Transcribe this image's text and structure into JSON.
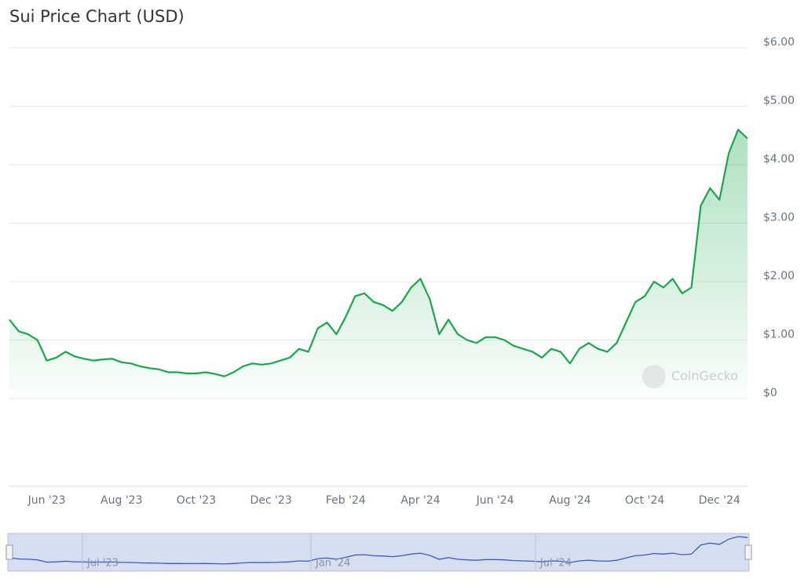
{
  "chart_data": {
    "type": "line",
    "title": "Sui Price Chart (USD)",
    "watermark": "CoinGecko",
    "color": "#18a84a",
    "grid": true,
    "categories": [
      null,
      null,
      null,
      null,
      "Jun '23",
      null,
      null,
      null,
      null,
      null,
      null,
      null,
      "Aug '23",
      null,
      null,
      null,
      null,
      null,
      null,
      null,
      "Oct '23",
      null,
      null,
      null,
      null,
      null,
      null,
      null,
      "Dec '23",
      null,
      null,
      null,
      null,
      null,
      null,
      null,
      "Feb '24",
      null,
      null,
      null,
      null,
      null,
      null,
      null,
      "Apr '24",
      null,
      null,
      null,
      null,
      null,
      null,
      null,
      "Jun '24",
      null,
      null,
      null,
      null,
      null,
      null,
      null,
      "Aug '24",
      null,
      null,
      null,
      null,
      null,
      null,
      null,
      "Oct '24",
      null,
      null,
      null,
      null,
      null,
      null,
      null,
      "Dec '24",
      null,
      null,
      null
    ],
    "values": [
      1.35,
      1.15,
      1.1,
      1.0,
      0.65,
      0.7,
      0.8,
      0.72,
      0.68,
      0.65,
      0.67,
      0.68,
      0.62,
      0.6,
      0.55,
      0.52,
      0.5,
      0.45,
      0.45,
      0.43,
      0.43,
      0.45,
      0.42,
      0.38,
      0.45,
      0.55,
      0.6,
      0.58,
      0.6,
      0.65,
      0.7,
      0.85,
      0.8,
      1.2,
      1.3,
      1.1,
      1.4,
      1.75,
      1.8,
      1.65,
      1.6,
      1.5,
      1.65,
      1.9,
      2.05,
      1.7,
      1.1,
      1.35,
      1.1,
      1.0,
      0.95,
      1.05,
      1.05,
      1.0,
      0.9,
      0.85,
      0.8,
      0.7,
      0.85,
      0.8,
      0.6,
      0.85,
      0.95,
      0.85,
      0.8,
      0.95,
      1.3,
      1.65,
      1.75,
      2.0,
      1.9,
      2.05,
      1.8,
      1.9,
      3.3,
      3.6,
      3.4,
      4.2,
      4.6,
      4.45
    ],
    "ylim": [
      0,
      6
    ],
    "yticks": [
      {
        "value": 0,
        "label": "$0"
      },
      {
        "value": 1,
        "label": "$1.00"
      },
      {
        "value": 2,
        "label": "$2.00"
      },
      {
        "value": 3,
        "label": "$3.00"
      },
      {
        "value": 4,
        "label": "$4.00"
      },
      {
        "value": 5,
        "label": "$5.00"
      },
      {
        "value": 6,
        "label": "$6.00"
      }
    ],
    "navigator": {
      "labels": [
        "Jul '23",
        "Jan '24",
        "Jul '24"
      ]
    }
  }
}
